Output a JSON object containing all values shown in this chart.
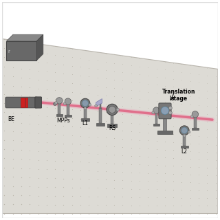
{
  "bg_color": "#f2f0ec",
  "table_face": "#dedad4",
  "table_edge": "#c8c4bc",
  "dot_color": "#b8b4a8",
  "beam_color": "#e06080",
  "beam_alpha": 0.85,
  "component_color": "#787878",
  "component_dark": "#505050",
  "component_light": "#aaaaaa",
  "laser_color": "#686868",
  "red_color": "#cc2020",
  "label_fontsize": 5.5,
  "title_fontsize": 7,
  "border_color": "#cccccc",
  "table_corners": [
    [
      0.0,
      0.0
    ],
    [
      1.0,
      0.0
    ],
    [
      1.0,
      0.68
    ],
    [
      0.0,
      0.82
    ]
  ],
  "dot_rows": 20,
  "dot_cols": 26
}
